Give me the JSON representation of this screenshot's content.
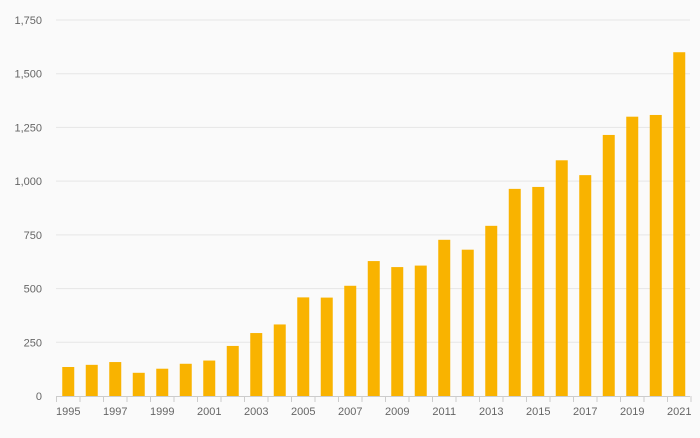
{
  "colors": {
    "bar": "#f9b300",
    "grid": "#e6e6e6",
    "axis": "#cccccc",
    "tick_text": "#666666",
    "background": "#fafafa"
  },
  "chart_data": {
    "type": "bar",
    "title": "",
    "xlabel": "",
    "ylabel": "",
    "categories": [
      "1995",
      "1996",
      "1997",
      "1998",
      "1999",
      "2000",
      "2001",
      "2002",
      "2003",
      "2004",
      "2005",
      "2006",
      "2007",
      "2008",
      "2009",
      "2010",
      "2011",
      "2012",
      "2013",
      "2014",
      "2015",
      "2016",
      "2017",
      "2018",
      "2019",
      "2020",
      "2021"
    ],
    "values": [
      135,
      145,
      158,
      108,
      127,
      150,
      165,
      233,
      293,
      333,
      459,
      458,
      513,
      628,
      600,
      607,
      727,
      681,
      792,
      964,
      973,
      1097,
      1028,
      1215,
      1300,
      1308,
      1600
    ],
    "x_tick_labels": [
      "1995",
      "1997",
      "1999",
      "2001",
      "2003",
      "2005",
      "2007",
      "2009",
      "2011",
      "2013",
      "2015",
      "2017",
      "2019",
      "2021"
    ],
    "y_ticks": [
      0,
      250,
      500,
      750,
      1000,
      1250,
      1500,
      1750
    ],
    "y_tick_labels": [
      "0",
      "250",
      "500",
      "750",
      "1,000",
      "1,250",
      "1,500",
      "1,750"
    ],
    "ylim": [
      0,
      1750
    ],
    "grid": true,
    "legend": "none"
  }
}
